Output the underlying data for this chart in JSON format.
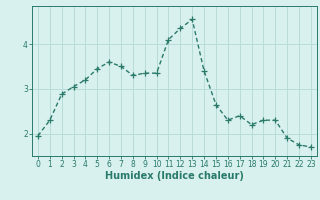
{
  "x": [
    0,
    1,
    2,
    3,
    4,
    5,
    6,
    7,
    8,
    9,
    10,
    11,
    12,
    13,
    14,
    15,
    16,
    17,
    18,
    19,
    20,
    21,
    22,
    23
  ],
  "y": [
    1.95,
    2.3,
    2.88,
    3.05,
    3.2,
    3.45,
    3.6,
    3.5,
    3.3,
    3.35,
    3.35,
    4.1,
    4.35,
    4.55,
    3.4,
    2.65,
    2.3,
    2.4,
    2.2,
    2.3,
    2.3,
    1.9,
    1.75,
    1.7
  ],
  "xlabel": "Humidex (Indice chaleur)",
  "xlim": [
    -0.5,
    23.5
  ],
  "ylim": [
    1.5,
    4.85
  ],
  "yticks": [
    2,
    3,
    4
  ],
  "xticks": [
    0,
    1,
    2,
    3,
    4,
    5,
    6,
    7,
    8,
    9,
    10,
    11,
    12,
    13,
    14,
    15,
    16,
    17,
    18,
    19,
    20,
    21,
    22,
    23
  ],
  "line_color": "#2a7a6a",
  "bg_color": "#d8f0ee",
  "grid_color": "#b8dcd8",
  "marker": "+",
  "marker_size": 4,
  "linewidth": 1.0,
  "label_fontsize": 7,
  "tick_fontsize": 5.5
}
